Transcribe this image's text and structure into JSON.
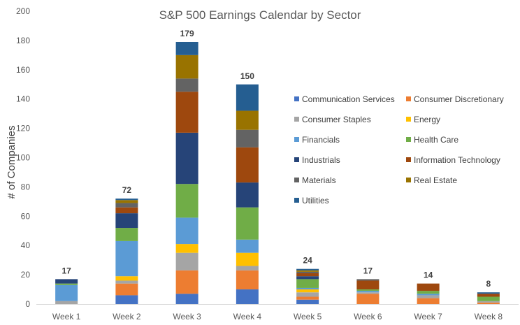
{
  "chart_data": {
    "type": "bar",
    "stacked": true,
    "title": "S&P 500 Earnings Calendar by Sector",
    "xlabel": "",
    "ylabel": "# of Companies",
    "ylim": [
      0,
      200
    ],
    "yticks": [
      0,
      20,
      40,
      60,
      80,
      100,
      120,
      140,
      160,
      180,
      200
    ],
    "grid": false,
    "legend_position": "right",
    "categories": [
      "Week 1",
      "Week 2",
      "Week 3",
      "Week 4",
      "Week 5",
      "Week 6",
      "Week 7",
      "Week 8"
    ],
    "totals": [
      17,
      72,
      179,
      150,
      24,
      17,
      14,
      8
    ],
    "series": [
      {
        "name": "Communication Services",
        "color": "#4472C4",
        "values": [
          0,
          6,
          7,
          10,
          3,
          0,
          0,
          0
        ]
      },
      {
        "name": "Consumer Discretionary",
        "color": "#ED7D31",
        "values": [
          0,
          8,
          16,
          13,
          2,
          7,
          4,
          1
        ]
      },
      {
        "name": "Consumer Staples",
        "color": "#A5A5A5",
        "values": [
          2,
          2,
          12,
          3,
          3,
          1,
          2,
          1
        ]
      },
      {
        "name": "Energy",
        "color": "#FFC000",
        "values": [
          0,
          3,
          6,
          9,
          2,
          0,
          0,
          0
        ]
      },
      {
        "name": "Financials",
        "color": "#5B9BD5",
        "values": [
          11,
          24,
          18,
          9,
          1,
          1,
          1,
          0
        ]
      },
      {
        "name": "Health Care",
        "color": "#70AD47",
        "values": [
          1,
          9,
          23,
          22,
          6,
          1,
          2,
          3
        ]
      },
      {
        "name": "Industrials",
        "color": "#264478",
        "values": [
          3,
          10,
          35,
          17,
          2,
          0,
          0,
          0
        ]
      },
      {
        "name": "Information Technology",
        "color": "#9E480E",
        "values": [
          0,
          4,
          28,
          24,
          2,
          6,
          5,
          2
        ]
      },
      {
        "name": "Materials",
        "color": "#636363",
        "values": [
          0,
          3,
          9,
          12,
          1,
          1,
          0,
          0
        ]
      },
      {
        "name": "Real Estate",
        "color": "#997300",
        "values": [
          0,
          2,
          16,
          13,
          1,
          0,
          0,
          0
        ]
      },
      {
        "name": "Utilities",
        "color": "#255E91",
        "values": [
          0,
          1,
          9,
          18,
          1,
          0,
          0,
          1
        ]
      }
    ]
  }
}
